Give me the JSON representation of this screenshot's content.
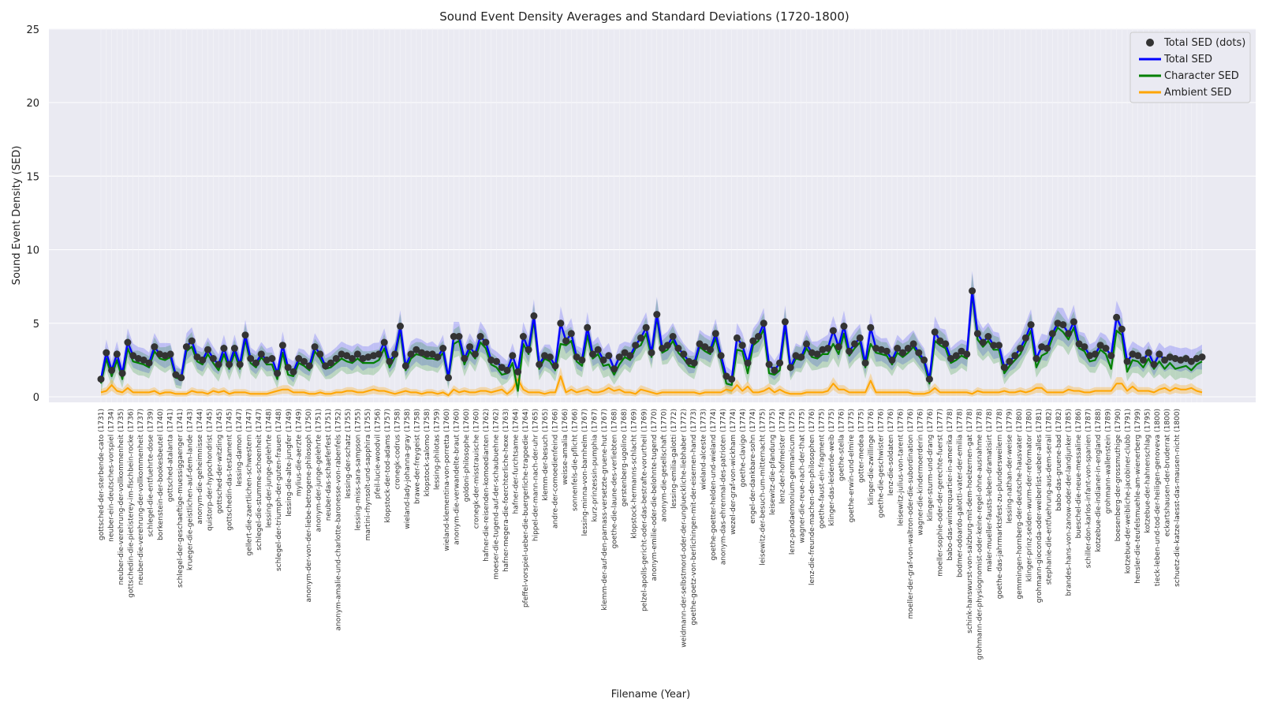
{
  "chart_data": {
    "type": "line",
    "title": "Sound Event Density Averages and Standard Deviations (1720-1800)",
    "xlabel": "Filename (Year)",
    "ylabel": "Sound Event Density (SED)",
    "ylim": [
      0,
      25
    ],
    "yticks": [
      0,
      5,
      10,
      15,
      20,
      25
    ],
    "grid": true,
    "legend_position": "top-right",
    "legend": [
      {
        "label": "Total SED (dots)",
        "kind": "dot",
        "color": "#333333"
      },
      {
        "label": "Total SED",
        "kind": "line",
        "color": "#0000ff"
      },
      {
        "label": "Character SED",
        "kind": "line",
        "color": "#008000"
      },
      {
        "label": "Ambient SED",
        "kind": "line",
        "color": "#ffa500"
      }
    ],
    "x_labels_visible": [
      "gottsched-der-sterbende-cato (1731)",
      "neuber-ein-deutsches-vorspiel (1734)",
      "neuber-die-verehrung-der-vollkommenheit (1735)",
      "gottschedin-die-pietisterey-im-fischbein-rocke (1736)",
      "neuber-die-verehrung-der-vollkommenheit (1737)",
      "schlegel-die-entfuehrte-dose (1739)",
      "borkenstein-der-bookesbeutel (1740)",
      "gottsched-atalanta (1741)",
      "schlegel-der-geschaeftige-muessiggaenger (1741)",
      "krueger-die-geistlichen-auf-dem-lande (1743)",
      "anonym-die-geheimnisse (1744)",
      "quistorp-der-hypochondrist (1745)",
      "gottsched-der-witzling (1745)",
      "gottschedin-das-testament (1745)",
      "lessing-damon (1747)",
      "gellert-die-zaertlichen-schwestern (1747)",
      "schlegel-die-stumme-schoenheit (1747)",
      "lessing-der-junge-gelehrte (1748)",
      "schlegel-der-triumph-der-guten-frauen (1748)",
      "lessing-die-alte-jungfer (1749)",
      "mylius-die-aerzte (1749)",
      "anonym-der-von-der-liebe-betrogene-philosoph (1750)",
      "anonym-der-junge-gelehrte (1751)",
      "neuber-das-schaeferfest (1751)",
      "anonym-amalie-und-charlotte-baronesse-von-rabenfels (1752)",
      "lessing-der-schatz (1755)",
      "lessing-miss-sara-sampson (1755)",
      "martini-rhynsolt-und-sapphira (1755)",
      "pfeil-lucie-woodvil (1756)",
      "klopstock-der-tod-adams (1757)",
      "cronegk-codrus (1758)",
      "wieland-lady-johanna-gray (1758)",
      "brawe-der-freygeist (1758)",
      "klopstock-salomo (1758)",
      "lessing-philotas (1759)",
      "wieland-klementina-von-porretta (1760)",
      "anonym-die-verwandelte-braut (1760)",
      "goldoni-philosophe (1760)",
      "cronegk-der-misstrauische (1760)",
      "hafner-die-reisenden-komoedianten (1762)",
      "moeser-die-tugend-auf-der-schaubuehne (1762)",
      "hafner-megera-die-foerchterliche-hexe (1763)",
      "hafner-der-furchtsame (1764)",
      "pfeffel-vorspiel-ueber-die-buergerliche-tragoedie (1764)",
      "hippel-der-mann-nach-der-uhr (1765)",
      "klemm-der-besuch (1765)",
      "andre-der-comoedienfeind (1766)",
      "weisse-amalia (1766)",
      "sonnenfels-die-pflicht (1766)",
      "lessing-minna-von-barnhelm (1767)",
      "kurz-prinzessin-pumphia (1767)",
      "klemm-der-auf-den-parnass-versetzte-gruene-hut (1767)",
      "goethe-die-laune-des-verliebten (1768)",
      "gerstenberg-ugolino (1768)",
      "klopstock-hermanns-schlacht (1769)",
      "pelzel-apolls-gericht-oder-das-bestrafte-vorurtheil (1769)",
      "anonym-emilie-oder-die-belohnte-tugend (1770)",
      "anonym-die-gesellschaft (1770)",
      "lessing-emilia-galotti (1772)",
      "weidmann-der-selbstmord-oder-der-unglueckliche-liebhaber (1772)",
      "goethe-goetz-von-berlichingen-mit-der-eisernen-hand (1773)",
      "wieland-alceste (1773)",
      "goethe-goetter-helden-und-wieland (1774)",
      "anonym-das-ehrenmal-des-patrioten (1774)",
      "wezel-der-graf-von-wickham (1774)",
      "goethe-clavigo (1774)",
      "engel-der-dankbare-sohn (1774)",
      "leisewitz-der-besuch-um-mitternacht (1775)",
      "leisewitz-die-pfandung (1775)",
      "lenz-der-hofmeister (1774)",
      "lenz-pandaemonium-germanicum (1775)",
      "wagner-die-reue-nach-der-that (1775)",
      "lenz-die-freunde-machen-den-philosophen (1776)",
      "goethe-faust-ein-fragment (1775)",
      "klinger-das-leidende-weib (1775)",
      "goethe-stella (1776)",
      "goethe-erwin-und-elmire (1775)",
      "gotter-medea (1775)",
      "klinger-die-zwillinge (1776)",
      "goethe-die-geschwister (1776)",
      "lenz-die-soldaten (1776)",
      "leisewitz-julius-von-tarent (1776)",
      "moeller-der-graf-von-waltron-oder-die-subordination (1776)",
      "wagner-die-kindermoerderin (1776)",
      "klinger-sturm-und-drang (1776)",
      "moeller-sophie-oder-der-gerechte-fuerst (1777)",
      "babo-das-winterquartier-in-amerika (1778)",
      "bodmer-odoardo-galotti-vater-der-emilia (1778)",
      "schink-hanswurst-von-salzburg-mit-dem-hoelzernen-gat (1778)",
      "grohmann-der-physiognomist-oder-keine-regel-ohne-ausnahme (1778)",
      "maler-mueller-fausts-leben-dramatisirt (1778)",
      "goethe-das-jahrmarktsfest-zu-plundersweilern (1778)",
      "lessing-nathan-der-weise (1779)",
      "gemmingen-hornberg-der-deutsche-hausvater (1780)",
      "klinger-prinz-seiden-wurm-der-reformator (1780)",
      "grohmann-gioconda-oder-weiberlist-ueber-alles (1781)",
      "stephanie-die-entfuehrung-aus-dem-serail (1782)",
      "babo-das-gruene-bad (1782)",
      "brandes-hans-von-zanow-oder-der-landjunker (1785)",
      "bueschel-die-neue-messaline (1786)",
      "schiller-don-karlos-infant-von-spanien (1787)",
      "kotzebue-die-indianer-in-england (1788)",
      "grohmann-wallenstein (1789)",
      "boesenberg-der-grossmuthige (1790)",
      "kotzebue-der-weibliche-jacobiner-clubb (1791)",
      "hensler-die-teufelsmuehle-am-wienerberg (1799)",
      "kotzebue-der-hahnenschlag (1795)",
      "tieck-leben-und-tod-der-heiligen-genoveva (1800)",
      "eckartshausen-der-bruderrat (1800)",
      "schuetz-die-katze-laesst-das-mausen-nicht (1800)"
    ],
    "series": [
      {
        "name": "Total SED",
        "color": "#0000ff",
        "values": [
          1.2,
          3.0,
          1.8,
          2.9,
          1.6,
          3.7,
          2.8,
          2.6,
          2.5,
          2.3,
          3.4,
          2.9,
          2.8,
          2.9,
          1.5,
          1.3,
          3.4,
          3.8,
          2.7,
          2.5,
          3.2,
          2.6,
          2.2,
          3.3,
          2.2,
          3.3,
          2.2,
          4.2,
          2.6,
          2.3,
          2.9,
          2.5,
          2.6,
          1.6,
          3.5,
          2.0,
          1.7,
          2.6,
          2.4,
          2.1,
          3.4,
          2.9,
          2.1,
          2.3,
          2.6,
          2.9,
          2.8,
          2.6,
          2.9,
          2.6,
          2.7,
          2.8,
          2.9,
          3.7,
          2.4,
          2.9,
          4.8,
          2.1,
          2.9,
          3.2,
          3.0,
          2.9,
          2.9,
          2.7,
          3.3,
          1.3,
          4.1,
          4.1,
          2.6,
          3.4,
          2.9,
          4.1,
          3.7,
          2.5,
          2.4,
          2.0,
          1.8,
          2.8,
          1.7,
          4.1,
          3.2,
          5.5,
          2.2,
          2.8,
          2.7,
          2.1,
          5.0,
          3.8,
          4.3,
          2.7,
          2.5,
          4.7,
          2.9,
          3.2,
          2.5,
          2.8,
          1.9,
          2.7,
          3.0,
          2.8,
          3.5,
          4.0,
          4.7,
          3.0,
          5.6,
          3.3,
          3.5,
          4.1,
          3.3,
          2.9,
          2.4,
          2.3,
          3.6,
          3.4,
          3.2,
          4.3,
          2.8,
          1.4,
          1.2,
          4.0,
          3.5,
          2.3,
          3.8,
          4.1,
          5.0,
          2.2,
          1.8,
          2.3,
          5.1,
          2.0,
          2.8,
          2.7,
          3.6,
          3.0,
          2.9,
          3.2,
          3.3,
          4.5,
          3.4,
          4.8,
          3.1,
          3.6,
          4.0,
          2.3,
          4.7,
          3.3,
          3.2,
          3.1,
          2.5,
          3.3,
          3.0,
          3.3,
          3.6,
          3.0,
          2.5,
          1.2,
          4.4,
          3.8,
          3.6,
          2.6,
          2.8,
          3.1,
          2.9,
          7.2,
          4.3,
          3.7,
          4.1,
          3.5,
          3.5,
          2.0,
          2.4,
          2.8,
          3.3,
          4.0,
          4.9,
          2.6,
          3.4,
          3.3,
          4.3,
          5.0,
          4.9,
          4.3,
          5.1,
          3.6,
          3.4,
          2.8,
          2.9,
          3.5,
          3.3,
          2.8,
          5.4,
          4.6,
          2.4,
          2.9,
          2.8,
          2.5,
          3.0,
          2.2,
          2.9,
          2.5,
          2.7,
          2.6,
          2.5,
          2.6,
          2.4,
          2.6,
          2.7
        ]
      },
      {
        "name": "Character SED",
        "color": "#008000",
        "values": [
          0.9,
          2.6,
          1.4,
          2.5,
          1.2,
          3.3,
          2.4,
          2.3,
          2.2,
          2.0,
          3.1,
          2.6,
          2.5,
          2.7,
          1.3,
          1.2,
          3.1,
          3.4,
          2.4,
          2.2,
          2.9,
          2.3,
          1.8,
          2.9,
          1.9,
          3.0,
          1.9,
          3.9,
          2.3,
          2.0,
          2.7,
          2.2,
          2.2,
          1.2,
          3.0,
          1.5,
          1.4,
          2.3,
          2.1,
          1.8,
          3.1,
          2.6,
          1.9,
          2.0,
          2.3,
          2.6,
          2.4,
          2.3,
          2.6,
          2.3,
          2.3,
          2.3,
          2.5,
          3.3,
          2.0,
          2.7,
          4.5,
          1.8,
          2.6,
          2.9,
          2.8,
          2.6,
          2.6,
          2.5,
          3.0,
          1.2,
          3.6,
          3.8,
          2.2,
          3.1,
          2.6,
          3.7,
          3.3,
          2.2,
          2.0,
          1.5,
          1.6,
          2.3,
          0.4,
          3.6,
          2.9,
          5.2,
          1.9,
          2.6,
          2.4,
          1.8,
          3.6,
          3.5,
          3.8,
          2.4,
          2.1,
          4.2,
          2.6,
          2.9,
          2.1,
          2.2,
          1.5,
          2.2,
          2.7,
          2.5,
          3.3,
          3.5,
          4.3,
          2.7,
          5.4,
          3.0,
          3.2,
          3.8,
          3.0,
          2.6,
          2.1,
          2.0,
          3.4,
          3.1,
          2.9,
          4.0,
          2.5,
          0.9,
          0.8,
          3.2,
          3.1,
          1.6,
          3.5,
          3.8,
          4.6,
          1.6,
          1.5,
          1.8,
          4.8,
          1.8,
          2.6,
          2.5,
          3.3,
          2.7,
          2.6,
          2.9,
          2.9,
          3.6,
          2.9,
          4.3,
          2.8,
          3.3,
          3.7,
          2.0,
          3.6,
          3.0,
          2.9,
          2.8,
          2.2,
          3.0,
          2.7,
          3.0,
          3.4,
          2.8,
          2.3,
          0.9,
          3.8,
          3.5,
          3.3,
          2.3,
          2.5,
          2.8,
          2.6,
          7.0,
          3.9,
          3.4,
          3.8,
          3.2,
          3.2,
          1.6,
          2.1,
          2.5,
          2.9,
          3.7,
          4.5,
          2.0,
          2.8,
          3.0,
          4.0,
          4.7,
          4.4,
          3.9,
          4.7,
          3.3,
          3.1,
          2.4,
          2.5,
          3.2,
          2.9,
          1.9,
          4.5,
          4.2,
          1.7,
          2.5,
          2.4,
          2.0,
          2.6,
          1.9,
          2.4,
          1.9,
          2.3,
          1.9,
          2.0,
          2.1,
          1.8,
          2.2,
          2.4
        ]
      },
      {
        "name": "Ambient SED",
        "color": "#ffa500",
        "values": [
          0.3,
          0.4,
          0.8,
          0.4,
          0.3,
          0.6,
          0.3,
          0.3,
          0.3,
          0.3,
          0.4,
          0.2,
          0.3,
          0.3,
          0.2,
          0.2,
          0.2,
          0.4,
          0.3,
          0.3,
          0.2,
          0.4,
          0.3,
          0.4,
          0.2,
          0.3,
          0.3,
          0.3,
          0.2,
          0.2,
          0.2,
          0.2,
          0.3,
          0.4,
          0.5,
          0.5,
          0.3,
          0.3,
          0.3,
          0.2,
          0.2,
          0.3,
          0.2,
          0.2,
          0.3,
          0.3,
          0.4,
          0.4,
          0.3,
          0.3,
          0.4,
          0.5,
          0.4,
          0.4,
          0.3,
          0.2,
          0.3,
          0.4,
          0.3,
          0.3,
          0.2,
          0.3,
          0.3,
          0.2,
          0.3,
          0.1,
          0.5,
          0.3,
          0.4,
          0.3,
          0.3,
          0.4,
          0.4,
          0.3,
          0.4,
          0.5,
          0.2,
          0.5,
          1.2,
          0.5,
          0.3,
          0.3,
          0.3,
          0.2,
          0.3,
          0.3,
          1.4,
          0.3,
          0.5,
          0.3,
          0.4,
          0.5,
          0.3,
          0.3,
          0.4,
          0.6,
          0.4,
          0.5,
          0.3,
          0.3,
          0.2,
          0.5,
          0.4,
          0.3,
          0.2,
          0.3,
          0.3,
          0.3,
          0.3,
          0.3,
          0.3,
          0.3,
          0.2,
          0.3,
          0.3,
          0.3,
          0.3,
          0.5,
          0.4,
          0.8,
          0.4,
          0.7,
          0.3,
          0.3,
          0.4,
          0.6,
          0.3,
          0.5,
          0.3,
          0.2,
          0.2,
          0.2,
          0.3,
          0.3,
          0.3,
          0.3,
          0.4,
          0.9,
          0.5,
          0.5,
          0.3,
          0.3,
          0.3,
          0.3,
          1.1,
          0.3,
          0.3,
          0.3,
          0.3,
          0.3,
          0.3,
          0.3,
          0.2,
          0.2,
          0.2,
          0.3,
          0.6,
          0.3,
          0.3,
          0.3,
          0.3,
          0.3,
          0.3,
          0.2,
          0.4,
          0.3,
          0.3,
          0.3,
          0.3,
          0.4,
          0.3,
          0.3,
          0.4,
          0.3,
          0.4,
          0.6,
          0.6,
          0.3,
          0.3,
          0.3,
          0.3,
          0.5,
          0.4,
          0.4,
          0.3,
          0.3,
          0.4,
          0.4,
          0.4,
          0.4,
          0.9,
          0.9,
          0.4,
          0.7,
          0.4,
          0.4,
          0.4,
          0.3,
          0.5,
          0.6,
          0.4,
          0.6,
          0.5,
          0.5,
          0.6,
          0.4,
          0.3
        ]
      }
    ]
  }
}
